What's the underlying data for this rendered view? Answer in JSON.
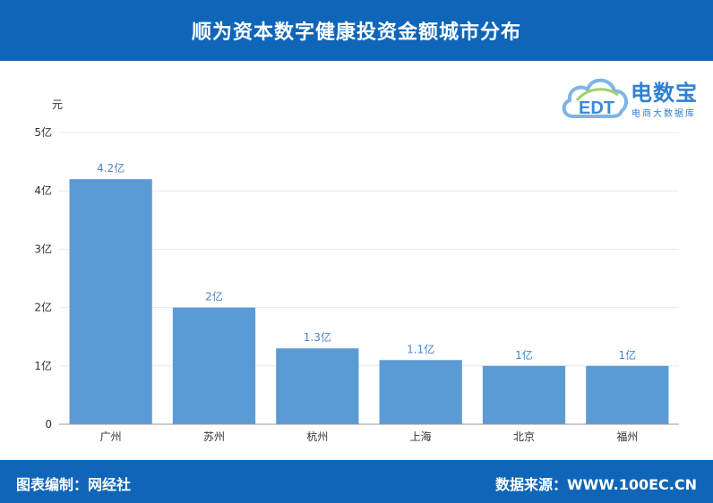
{
  "header": {
    "title": "顺为资本数字健康投资金额城市分布"
  },
  "logo": {
    "name": "电数宝",
    "subtitle": "电商大数据库",
    "mark_text": "EDT"
  },
  "footer": {
    "left": "图表编制：网经社",
    "right": "数据来源：WWW.100EC.CN"
  },
  "chart_data": {
    "type": "bar",
    "categories": [
      "广州",
      "苏州",
      "杭州",
      "上海",
      "北京",
      "福州"
    ],
    "values": [
      4.2,
      2,
      1.3,
      1.1,
      1,
      1
    ],
    "data_labels": [
      "4.2亿",
      "2亿",
      "1.3亿",
      "1.1亿",
      "1亿",
      "1亿"
    ],
    "yticks": [
      0,
      1,
      2,
      3,
      4,
      5
    ],
    "ytick_labels": [
      "0",
      "1亿",
      "2亿",
      "3亿",
      "4亿",
      "5亿"
    ],
    "ylabel": "元",
    "ylim": [
      0,
      5
    ],
    "grid": true,
    "bar_color": "#5b9bd5",
    "label_color": "#4a86c5"
  }
}
